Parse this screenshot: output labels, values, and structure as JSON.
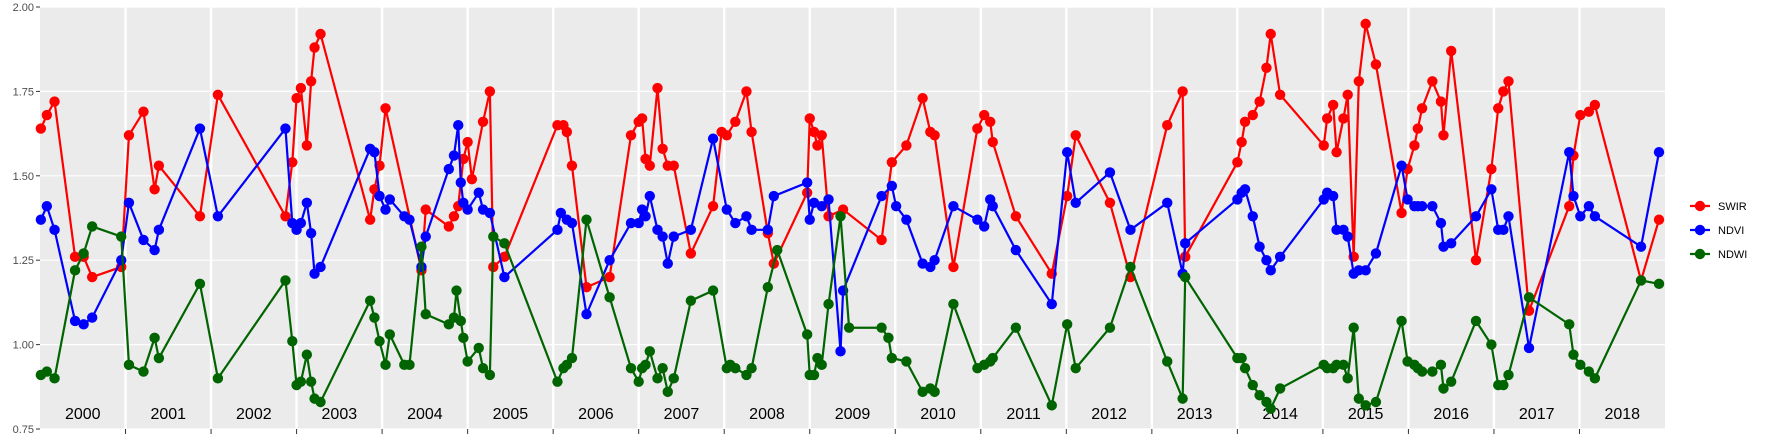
{
  "chart_data": {
    "type": "line",
    "xlim": [
      2000,
      2019
    ],
    "ylim": [
      0.75,
      2.0
    ],
    "yticks": [
      {
        "value": 0.75,
        "label": "0.75"
      },
      {
        "value": 1,
        "label": "1.00"
      },
      {
        "value": 1.25,
        "label": "1.25"
      },
      {
        "value": 1.5,
        "label": "1.50"
      },
      {
        "value": 1.75,
        "label": "1.75"
      },
      {
        "value": 2,
        "label": "2.00"
      }
    ],
    "xgrid": [
      2001,
      2002,
      2003,
      2004,
      2005,
      2006,
      2007,
      2008,
      2009,
      2010,
      2011,
      2012,
      2013,
      2014,
      2015,
      2016,
      2017,
      2018
    ],
    "year_labels": [
      {
        "value": 2000.5,
        "label": "2000"
      },
      {
        "value": 2001.5,
        "label": "2001"
      },
      {
        "value": 2002.5,
        "label": "2002"
      },
      {
        "value": 2003.5,
        "label": "2003"
      },
      {
        "value": 2004.5,
        "label": "2004"
      },
      {
        "value": 2005.5,
        "label": "2005"
      },
      {
        "value": 2006.5,
        "label": "2006"
      },
      {
        "value": 2007.5,
        "label": "2007"
      },
      {
        "value": 2008.5,
        "label": "2008"
      },
      {
        "value": 2009.5,
        "label": "2009"
      },
      {
        "value": 2010.5,
        "label": "2010"
      },
      {
        "value": 2011.5,
        "label": "2011"
      },
      {
        "value": 2012.5,
        "label": "2012"
      },
      {
        "value": 2013.5,
        "label": "2013"
      },
      {
        "value": 2014.5,
        "label": "2014"
      },
      {
        "value": 2015.5,
        "label": "2015"
      },
      {
        "value": 2016.5,
        "label": "2016"
      },
      {
        "value": 2017.5,
        "label": "2017"
      },
      {
        "value": 2018.5,
        "label": "2018"
      }
    ],
    "grid": true,
    "legend": "right",
    "series": [
      {
        "name": "SWIR",
        "color": "#ff0000",
        "x": [
          2000.01,
          2000.08,
          2000.17,
          2000.41,
          2000.51,
          2000.61,
          2000.95,
          2001.04,
          2001.21,
          2001.34,
          2001.39,
          2001.87,
          2002.08,
          2002.87,
          2002.95,
          2003.0,
          2003.05,
          2003.12,
          2003.17,
          2003.21,
          2003.28,
          2003.86,
          2003.91,
          2003.97,
          2004.04,
          2004.46,
          2004.51,
          2004.78,
          2004.84,
          2004.89,
          2004.95,
          2005.0,
          2005.05,
          2005.18,
          2005.26,
          2005.3,
          2005.43,
          2006.05,
          2006.12,
          2006.16,
          2006.22,
          2006.39,
          2006.66,
          2006.91,
          2007.0,
          2007.04,
          2007.08,
          2007.13,
          2007.22,
          2007.28,
          2007.34,
          2007.41,
          2007.61,
          2007.87,
          2007.97,
          2008.03,
          2008.13,
          2008.26,
          2008.32,
          2008.51,
          2008.58,
          2008.97,
          2009.0,
          2009.05,
          2009.09,
          2009.14,
          2009.22,
          2009.39,
          2009.84,
          2009.96,
          2010.13,
          2010.32,
          2010.41,
          2010.46,
          2010.68,
          2010.96,
          2011.04,
          2011.11,
          2011.14,
          2011.41,
          2011.83,
          2012.01,
          2012.11,
          2012.51,
          2012.75,
          2013.18,
          2013.36,
          2013.39,
          2014.0,
          2014.05,
          2014.09,
          2014.18,
          2014.26,
          2014.34,
          2014.39,
          2014.5,
          2015.01,
          2015.05,
          2015.12,
          2015.16,
          2015.24,
          2015.29,
          2015.36,
          2015.42,
          2015.5,
          2015.62,
          2015.92,
          2015.99,
          2016.07,
          2016.11,
          2016.16,
          2016.28,
          2016.38,
          2016.41,
          2016.5,
          2016.79,
          2016.97,
          2017.05,
          2017.11,
          2017.17,
          2017.41,
          2017.88,
          2017.93,
          2018.01,
          2018.11,
          2018.18,
          2018.72,
          2018.93
        ],
        "values": [
          1.64,
          1.68,
          1.72,
          1.26,
          1.26,
          1.2,
          1.23,
          1.62,
          1.69,
          1.46,
          1.53,
          1.38,
          1.74,
          1.38,
          1.54,
          1.73,
          1.76,
          1.59,
          1.78,
          1.88,
          1.92,
          1.37,
          1.46,
          1.53,
          1.7,
          1.22,
          1.4,
          1.35,
          1.38,
          1.41,
          1.55,
          1.6,
          1.49,
          1.66,
          1.75,
          1.23,
          1.26,
          1.65,
          1.65,
          1.63,
          1.53,
          1.17,
          1.2,
          1.62,
          1.66,
          1.67,
          1.55,
          1.53,
          1.76,
          1.58,
          1.53,
          1.53,
          1.27,
          1.41,
          1.63,
          1.62,
          1.66,
          1.75,
          1.63,
          1.33,
          1.24,
          1.45,
          1.67,
          1.63,
          1.59,
          1.62,
          1.38,
          1.4,
          1.31,
          1.54,
          1.59,
          1.73,
          1.63,
          1.62,
          1.23,
          1.64,
          1.68,
          1.66,
          1.6,
          1.38,
          1.21,
          1.44,
          1.62,
          1.42,
          1.2,
          1.65,
          1.75,
          1.26,
          1.54,
          1.6,
          1.66,
          1.68,
          1.72,
          1.82,
          1.92,
          1.74,
          1.59,
          1.67,
          1.71,
          1.57,
          1.67,
          1.74,
          1.26,
          1.78,
          1.95,
          1.83,
          1.39,
          1.52,
          1.59,
          1.64,
          1.7,
          1.78,
          1.72,
          1.62,
          1.87,
          1.25,
          1.52,
          1.7,
          1.75,
          1.78,
          1.1,
          1.41,
          1.56,
          1.68,
          1.69,
          1.71,
          1.19,
          1.37
        ]
      },
      {
        "name": "NDVI",
        "color": "#0000ff",
        "x": [
          2000.01,
          2000.08,
          2000.17,
          2000.41,
          2000.51,
          2000.61,
          2000.95,
          2001.04,
          2001.21,
          2001.34,
          2001.39,
          2001.87,
          2002.08,
          2002.87,
          2002.95,
          2003.0,
          2003.05,
          2003.12,
          2003.17,
          2003.21,
          2003.28,
          2003.86,
          2003.91,
          2003.97,
          2004.04,
          2004.09,
          2004.26,
          2004.32,
          2004.46,
          2004.51,
          2004.78,
          2004.84,
          2004.89,
          2004.92,
          2004.95,
          2005.0,
          2005.13,
          2005.18,
          2005.26,
          2005.43,
          2006.05,
          2006.09,
          2006.16,
          2006.22,
          2006.39,
          2006.66,
          2006.91,
          2007.0,
          2007.04,
          2007.08,
          2007.13,
          2007.22,
          2007.28,
          2007.34,
          2007.41,
          2007.61,
          2007.87,
          2008.03,
          2008.13,
          2008.26,
          2008.32,
          2008.51,
          2008.58,
          2008.97,
          2009.0,
          2009.05,
          2009.14,
          2009.22,
          2009.36,
          2009.39,
          2009.84,
          2009.96,
          2010.01,
          2010.13,
          2010.32,
          2010.41,
          2010.46,
          2010.68,
          2010.96,
          2011.04,
          2011.11,
          2011.14,
          2011.41,
          2011.83,
          2012.01,
          2012.11,
          2012.51,
          2012.75,
          2013.18,
          2013.36,
          2013.39,
          2014.0,
          2014.05,
          2014.09,
          2014.18,
          2014.26,
          2014.34,
          2014.39,
          2014.5,
          2015.01,
          2015.05,
          2015.12,
          2015.16,
          2015.24,
          2015.29,
          2015.36,
          2015.42,
          2015.5,
          2015.62,
          2015.92,
          2015.99,
          2016.07,
          2016.11,
          2016.16,
          2016.28,
          2016.38,
          2016.41,
          2016.5,
          2016.79,
          2016.97,
          2017.05,
          2017.11,
          2017.17,
          2017.41,
          2017.88,
          2017.93,
          2018.01,
          2018.11,
          2018.18,
          2018.72,
          2018.93
        ],
        "values": [
          1.37,
          1.41,
          1.34,
          1.07,
          1.06,
          1.08,
          1.25,
          1.42,
          1.31,
          1.28,
          1.34,
          1.64,
          1.38,
          1.64,
          1.36,
          1.34,
          1.36,
          1.42,
          1.33,
          1.21,
          1.23,
          1.58,
          1.57,
          1.44,
          1.4,
          1.43,
          1.38,
          1.37,
          1.23,
          1.32,
          1.52,
          1.56,
          1.65,
          1.48,
          1.42,
          1.4,
          1.45,
          1.4,
          1.39,
          1.2,
          1.34,
          1.39,
          1.37,
          1.36,
          1.09,
          1.25,
          1.36,
          1.36,
          1.4,
          1.38,
          1.44,
          1.34,
          1.32,
          1.24,
          1.32,
          1.34,
          1.61,
          1.4,
          1.36,
          1.38,
          1.34,
          1.34,
          1.44,
          1.48,
          1.37,
          1.42,
          1.41,
          1.43,
          0.98,
          1.16,
          1.44,
          1.47,
          1.41,
          1.37,
          1.24,
          1.23,
          1.25,
          1.41,
          1.37,
          1.35,
          1.43,
          1.41,
          1.28,
          1.12,
          1.57,
          1.42,
          1.51,
          1.34,
          1.42,
          1.21,
          1.3,
          1.43,
          1.45,
          1.46,
          1.38,
          1.29,
          1.25,
          1.22,
          1.26,
          1.43,
          1.45,
          1.44,
          1.34,
          1.34,
          1.32,
          1.21,
          1.22,
          1.22,
          1.27,
          1.53,
          1.43,
          1.41,
          1.41,
          1.41,
          1.41,
          1.36,
          1.29,
          1.3,
          1.38,
          1.46,
          1.34,
          1.34,
          1.38,
          0.99,
          1.57,
          1.44,
          1.38,
          1.41,
          1.38,
          1.29,
          1.57
        ]
      },
      {
        "name": "NDWI",
        "color": "#006400",
        "x": [
          2000.01,
          2000.08,
          2000.17,
          2000.41,
          2000.51,
          2000.61,
          2000.95,
          2001.04,
          2001.21,
          2001.34,
          2001.39,
          2001.87,
          2002.08,
          2002.87,
          2002.95,
          2003.0,
          2003.05,
          2003.12,
          2003.17,
          2003.21,
          2003.28,
          2003.86,
          2003.91,
          2003.97,
          2004.04,
          2004.09,
          2004.26,
          2004.32,
          2004.46,
          2004.51,
          2004.78,
          2004.84,
          2004.87,
          2004.92,
          2004.95,
          2005.0,
          2005.13,
          2005.18,
          2005.26,
          2005.3,
          2005.43,
          2006.05,
          2006.12,
          2006.16,
          2006.22,
          2006.39,
          2006.66,
          2006.91,
          2007.0,
          2007.04,
          2007.08,
          2007.13,
          2007.22,
          2007.28,
          2007.34,
          2007.41,
          2007.61,
          2007.87,
          2008.03,
          2008.07,
          2008.13,
          2008.26,
          2008.32,
          2008.51,
          2008.62,
          2008.97,
          2009.0,
          2009.05,
          2009.09,
          2009.14,
          2009.22,
          2009.36,
          2009.46,
          2009.84,
          2009.92,
          2009.96,
          2010.13,
          2010.32,
          2010.41,
          2010.46,
          2010.68,
          2010.96,
          2011.04,
          2011.11,
          2011.14,
          2011.41,
          2011.83,
          2012.01,
          2012.11,
          2012.51,
          2012.75,
          2013.18,
          2013.36,
          2013.39,
          2014.0,
          2014.05,
          2014.09,
          2014.18,
          2014.26,
          2014.34,
          2014.39,
          2014.5,
          2015.01,
          2015.05,
          2015.12,
          2015.16,
          2015.24,
          2015.29,
          2015.36,
          2015.42,
          2015.5,
          2015.62,
          2015.92,
          2015.99,
          2016.07,
          2016.11,
          2016.16,
          2016.28,
          2016.38,
          2016.41,
          2016.5,
          2016.79,
          2016.97,
          2017.05,
          2017.11,
          2017.17,
          2017.41,
          2017.88,
          2017.93,
          2018.01,
          2018.11,
          2018.18,
          2018.72,
          2018.93
        ],
        "values": [
          0.91,
          0.92,
          0.9,
          1.22,
          1.27,
          1.35,
          1.32,
          0.94,
          0.92,
          1.02,
          0.96,
          1.18,
          0.9,
          1.19,
          1.01,
          0.88,
          0.89,
          0.97,
          0.89,
          0.84,
          0.83,
          1.13,
          1.08,
          1.01,
          0.94,
          1.03,
          0.94,
          0.94,
          1.29,
          1.09,
          1.06,
          1.08,
          1.16,
          1.07,
          1.02,
          0.95,
          0.99,
          0.93,
          0.91,
          1.32,
          1.3,
          0.89,
          0.93,
          0.94,
          0.96,
          1.37,
          1.14,
          0.93,
          0.89,
          0.93,
          0.94,
          0.98,
          0.9,
          0.93,
          0.86,
          0.9,
          1.13,
          1.16,
          0.93,
          0.94,
          0.93,
          0.91,
          0.93,
          1.17,
          1.28,
          1.03,
          0.91,
          0.91,
          0.96,
          0.94,
          1.12,
          1.38,
          1.05,
          1.05,
          1.02,
          0.96,
          0.95,
          0.86,
          0.87,
          0.86,
          1.12,
          0.93,
          0.94,
          0.95,
          0.96,
          1.05,
          0.82,
          1.06,
          0.93,
          1.05,
          1.23,
          0.95,
          0.84,
          1.2,
          0.96,
          0.96,
          0.93,
          0.88,
          0.85,
          0.83,
          0.81,
          0.87,
          0.94,
          0.93,
          0.93,
          0.94,
          0.94,
          0.9,
          1.05,
          0.84,
          0.82,
          0.83,
          1.07,
          0.95,
          0.94,
          0.93,
          0.92,
          0.92,
          0.94,
          0.87,
          0.89,
          1.07,
          1.0,
          0.88,
          0.88,
          0.91,
          1.14,
          1.06,
          0.97,
          0.94,
          0.92,
          0.9,
          1.19,
          1.18
        ]
      }
    ]
  }
}
